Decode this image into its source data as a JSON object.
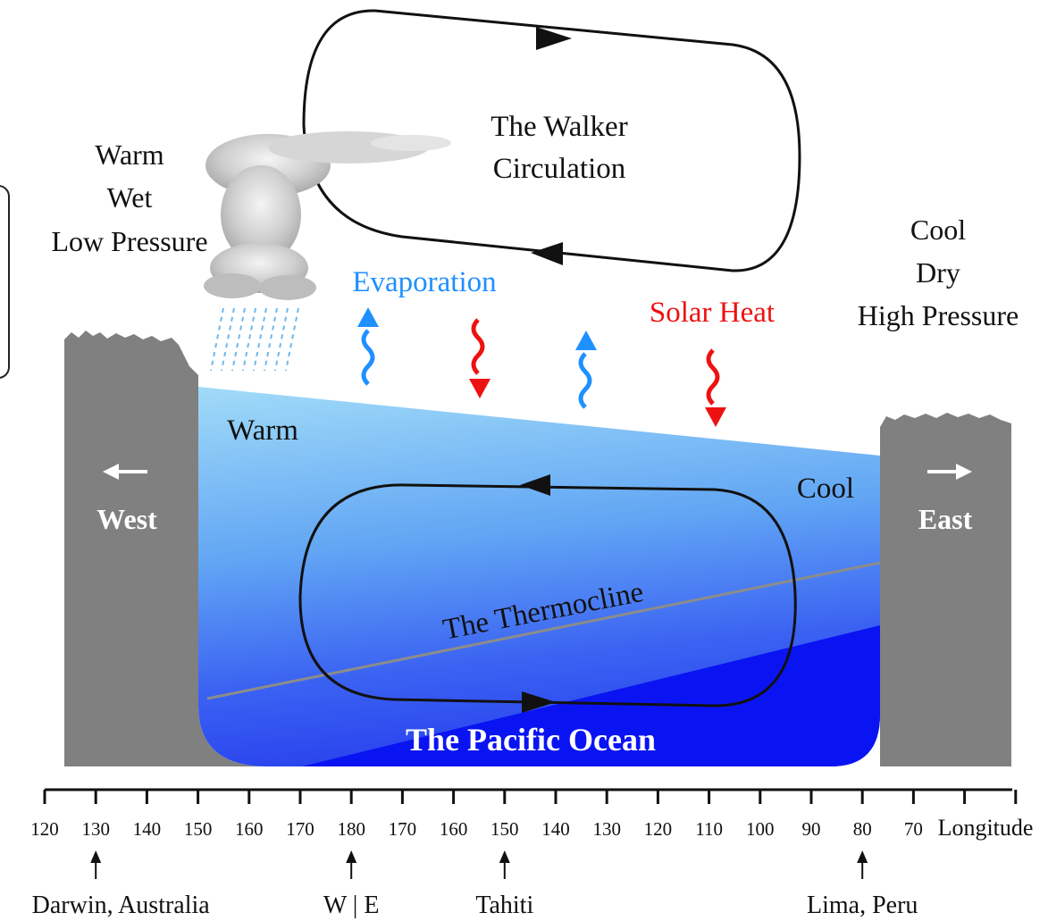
{
  "labels": {
    "walker_line1": "The Walker",
    "walker_line2": "Circulation",
    "west_climate": [
      "Warm",
      "Wet",
      "Low Pressure"
    ],
    "east_climate": [
      "Cool",
      "Dry",
      "High Pressure"
    ],
    "evaporation": "Evaporation",
    "solar_heat": "Solar Heat",
    "warm": "Warm",
    "cool": "Cool",
    "west": "West",
    "east": "East",
    "thermocline": "The Thermocline",
    "ocean": "The Pacific Ocean"
  },
  "axis": {
    "ticks": [
      "120",
      "130",
      "140",
      "150",
      "160",
      "170",
      "180",
      "170",
      "160",
      "150",
      "140",
      "130",
      "120",
      "110",
      "100",
      "90",
      "80",
      "70"
    ],
    "title": "Longitude"
  },
  "locations": [
    {
      "name": "Darwin, Australia",
      "tick": "130"
    },
    {
      "name": "W | E",
      "tick": "180"
    },
    {
      "name": "Tahiti",
      "tick": "150"
    },
    {
      "name": "Lima, Peru",
      "tick": "80"
    }
  ],
  "colors": {
    "land": "#808080",
    "evaporation": "#1e90ff",
    "solar": "#ee1111",
    "ocean_top": "#9bd8f6",
    "ocean_deep": "#0a10f0",
    "thermocline": "#8c8c8c"
  }
}
